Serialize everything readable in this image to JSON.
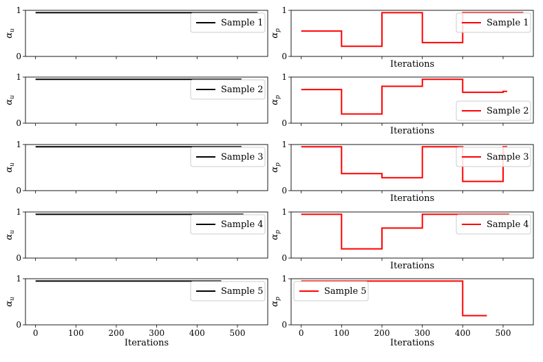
{
  "figure": {
    "description_free": true
  },
  "chart_data": [
    {
      "id": "l1",
      "type": "line",
      "ylabel": "α_u",
      "xlabel": "",
      "legend": "top-right",
      "xlim": [
        -25,
        575
      ],
      "ylim": [
        0,
        1
      ],
      "xticks": [
        0,
        100,
        200,
        300,
        400,
        500
      ],
      "yticks": [
        0,
        1
      ],
      "xtick_labels_shown": false,
      "color": "#000000",
      "series": [
        {
          "name": "Sample 1",
          "x": [
            0,
            550
          ],
          "y": [
            0.95,
            0.95
          ]
        }
      ]
    },
    {
      "id": "r1",
      "type": "line",
      "ylabel": "α_p",
      "xlabel": "Iterations",
      "legend": "top-right",
      "xlim": [
        -25,
        575
      ],
      "ylim": [
        0,
        1
      ],
      "xticks": [
        0,
        100,
        200,
        300,
        400,
        500
      ],
      "yticks": [
        0,
        1
      ],
      "xtick_labels_shown": false,
      "color": "#ff0000",
      "series": [
        {
          "name": "Sample 1",
          "x": [
            0,
            100,
            100,
            200,
            200,
            300,
            300,
            400,
            400,
            550
          ],
          "y": [
            0.55,
            0.55,
            0.22,
            0.22,
            0.95,
            0.95,
            0.3,
            0.3,
            0.95,
            0.95
          ]
        }
      ]
    },
    {
      "id": "l2",
      "type": "line",
      "ylabel": "α_u",
      "xlabel": "",
      "legend": "top-right",
      "xlim": [
        -25,
        575
      ],
      "ylim": [
        0,
        1
      ],
      "xticks": [
        0,
        100,
        200,
        300,
        400,
        500
      ],
      "yticks": [
        0,
        1
      ],
      "xtick_labels_shown": false,
      "color": "#000000",
      "series": [
        {
          "name": "Sample 2",
          "x": [
            0,
            510
          ],
          "y": [
            0.95,
            0.95
          ]
        }
      ]
    },
    {
      "id": "r2",
      "type": "line",
      "ylabel": "α_p",
      "xlabel": "Iterations",
      "legend": "bottom-right",
      "xlim": [
        -25,
        575
      ],
      "ylim": [
        0,
        1
      ],
      "xticks": [
        0,
        100,
        200,
        300,
        400,
        500
      ],
      "yticks": [
        0,
        1
      ],
      "xtick_labels_shown": false,
      "color": "#ff0000",
      "series": [
        {
          "name": "Sample 2",
          "x": [
            0,
            100,
            100,
            200,
            200,
            300,
            300,
            400,
            400,
            500,
            500,
            510
          ],
          "y": [
            0.73,
            0.73,
            0.2,
            0.2,
            0.8,
            0.8,
            0.95,
            0.95,
            0.67,
            0.67,
            0.69,
            0.69
          ]
        }
      ]
    },
    {
      "id": "l3",
      "type": "line",
      "ylabel": "α_u",
      "xlabel": "",
      "legend": "top-right",
      "xlim": [
        -25,
        575
      ],
      "ylim": [
        0,
        1
      ],
      "xticks": [
        0,
        100,
        200,
        300,
        400,
        500
      ],
      "yticks": [
        0,
        1
      ],
      "xtick_labels_shown": false,
      "color": "#000000",
      "series": [
        {
          "name": "Sample 3",
          "x": [
            0,
            510
          ],
          "y": [
            0.95,
            0.95
          ]
        }
      ]
    },
    {
      "id": "r3",
      "type": "line",
      "ylabel": "α_p",
      "xlabel": "Iterations",
      "legend": "top-right",
      "xlim": [
        -25,
        575
      ],
      "ylim": [
        0,
        1
      ],
      "xticks": [
        0,
        100,
        200,
        300,
        400,
        500
      ],
      "yticks": [
        0,
        1
      ],
      "xtick_labels_shown": false,
      "color": "#ff0000",
      "series": [
        {
          "name": "Sample 3",
          "x": [
            0,
            100,
            100,
            200,
            200,
            300,
            300,
            400,
            400,
            500,
            500,
            510
          ],
          "y": [
            0.95,
            0.95,
            0.37,
            0.37,
            0.28,
            0.28,
            0.95,
            0.95,
            0.2,
            0.2,
            0.95,
            0.95
          ]
        }
      ]
    },
    {
      "id": "l4",
      "type": "line",
      "ylabel": "α_u",
      "xlabel": "",
      "legend": "top-right",
      "xlim": [
        -25,
        575
      ],
      "ylim": [
        0,
        1
      ],
      "xticks": [
        0,
        100,
        200,
        300,
        400,
        500
      ],
      "yticks": [
        0,
        1
      ],
      "xtick_labels_shown": false,
      "color": "#000000",
      "series": [
        {
          "name": "Sample 4",
          "x": [
            0,
            515
          ],
          "y": [
            0.95,
            0.95
          ]
        }
      ]
    },
    {
      "id": "r4",
      "type": "line",
      "ylabel": "α_p",
      "xlabel": "Iterations",
      "legend": "top-right",
      "xlim": [
        -25,
        575
      ],
      "ylim": [
        0,
        1
      ],
      "xticks": [
        0,
        100,
        200,
        300,
        400,
        500
      ],
      "yticks": [
        0,
        1
      ],
      "xtick_labels_shown": false,
      "color": "#ff0000",
      "series": [
        {
          "name": "Sample 4",
          "x": [
            0,
            100,
            100,
            200,
            200,
            300,
            300,
            515
          ],
          "y": [
            0.95,
            0.95,
            0.2,
            0.2,
            0.65,
            0.65,
            0.95,
            0.95
          ]
        }
      ]
    },
    {
      "id": "l5",
      "type": "line",
      "ylabel": "α_u",
      "xlabel": "Iterations",
      "legend": "top-right",
      "xlim": [
        -25,
        575
      ],
      "ylim": [
        0,
        1
      ],
      "xticks": [
        0,
        100,
        200,
        300,
        400,
        500
      ],
      "yticks": [
        0,
        1
      ],
      "xtick_labels_shown": true,
      "color": "#000000",
      "series": [
        {
          "name": "Sample 5",
          "x": [
            0,
            460
          ],
          "y": [
            0.95,
            0.95
          ]
        }
      ]
    },
    {
      "id": "r5",
      "type": "line",
      "ylabel": "α_p",
      "xlabel": "Iterations",
      "legend": "top-left",
      "xlim": [
        -25,
        575
      ],
      "ylim": [
        0,
        1
      ],
      "xticks": [
        0,
        100,
        200,
        300,
        400,
        500
      ],
      "yticks": [
        0,
        1
      ],
      "xtick_labels_shown": true,
      "color": "#ff0000",
      "series": [
        {
          "name": "Sample 5",
          "x": [
            0,
            400,
            400,
            460
          ],
          "y": [
            0.95,
            0.95,
            0.2,
            0.2
          ]
        }
      ]
    }
  ]
}
